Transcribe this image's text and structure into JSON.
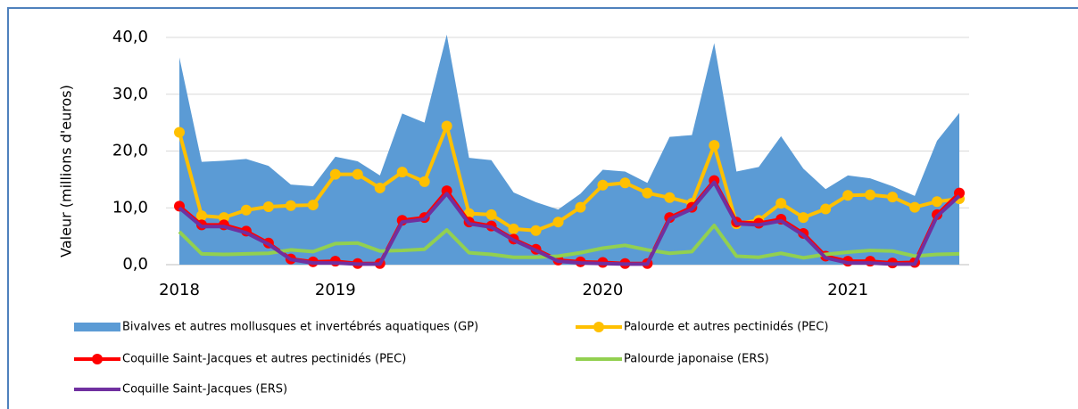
{
  "chart_data": {
    "type": "line",
    "y_label": "Valeur (millions d'euros)",
    "categories": [
      "2018",
      null,
      null,
      null,
      null,
      null,
      null,
      "2019",
      null,
      null,
      null,
      null,
      null,
      null,
      null,
      null,
      null,
      null,
      null,
      "2020",
      null,
      null,
      null,
      null,
      null,
      null,
      null,
      null,
      null,
      null,
      "2021",
      null,
      null,
      null,
      null,
      null
    ],
    "ylim": [
      0,
      40
    ],
    "yticks": [
      {
        "value": 0,
        "label": "0,0"
      },
      {
        "value": 10,
        "label": "10,0"
      },
      {
        "value": 20,
        "label": "20,0"
      },
      {
        "value": 30,
        "label": "30,0"
      },
      {
        "value": 40,
        "label": "40,0"
      }
    ],
    "grid": true,
    "series": [
      {
        "name": "Bivalves et autres mollusques et invertébrés aquatiques (GP)",
        "color": "#5b9bd5",
        "kind": "area",
        "markers": false,
        "values": [
          36.5,
          18.1,
          18.3,
          18.6,
          17.4,
          14.1,
          13.8,
          19.0,
          18.2,
          15.7,
          26.6,
          25.0,
          40.5,
          18.8,
          18.4,
          12.7,
          11.0,
          9.7,
          12.5,
          16.7,
          16.4,
          14.4,
          22.5,
          22.8,
          39.0,
          16.4,
          17.2,
          22.6,
          16.9,
          13.3,
          15.7,
          15.2,
          13.8,
          12.1,
          21.8,
          26.7
        ]
      },
      {
        "name": "Palourde et autres pectinidés (PEC)",
        "color": "#ffc000",
        "kind": "line",
        "markers": true,
        "values": [
          23.3,
          8.6,
          8.3,
          9.6,
          10.2,
          10.4,
          10.5,
          15.9,
          15.9,
          13.5,
          16.3,
          14.6,
          24.4,
          9.0,
          8.8,
          6.3,
          6.0,
          7.5,
          10.1,
          14.0,
          14.4,
          12.6,
          11.8,
          10.8,
          21.0,
          7.2,
          7.8,
          10.8,
          8.3,
          9.8,
          12.2,
          12.3,
          11.9,
          10.1,
          11.1,
          11.6
        ]
      },
      {
        "name": "Coquille Saint-Jacques et autres pectinidés  (PEC)",
        "color": "#ff0000",
        "kind": "line",
        "markers": true,
        "values": [
          10.3,
          7.0,
          7.0,
          5.9,
          3.8,
          1.0,
          0.5,
          0.6,
          0.2,
          0.2,
          7.8,
          8.3,
          13.0,
          7.5,
          6.8,
          4.5,
          2.7,
          0.8,
          0.5,
          0.4,
          0.2,
          0.2,
          8.3,
          10.1,
          14.8,
          7.5,
          7.3,
          8.0,
          5.5,
          1.5,
          0.6,
          0.6,
          0.3,
          0.4,
          8.8,
          12.6
        ]
      },
      {
        "name": "Palourde japonaise (ERS)",
        "color": "#92d050",
        "kind": "line",
        "markers": false,
        "values": [
          5.8,
          1.9,
          1.8,
          1.9,
          2.0,
          2.6,
          2.3,
          3.7,
          3.8,
          2.4,
          2.5,
          2.7,
          6.1,
          2.1,
          1.8,
          1.3,
          1.3,
          1.5,
          2.1,
          2.9,
          3.4,
          2.6,
          2.0,
          2.3,
          6.9,
          1.5,
          1.3,
          2.0,
          1.2,
          1.8,
          2.2,
          2.5,
          2.4,
          1.5,
          1.8,
          1.9
        ]
      },
      {
        "name": "Coquille Saint-Jacques (ERS)",
        "color": "#7030a0",
        "kind": "line",
        "markers": false,
        "values": [
          10.0,
          6.7,
          6.7,
          5.6,
          3.6,
          0.9,
          0.3,
          0.3,
          0.1,
          0.1,
          7.5,
          8.0,
          12.5,
          7.2,
          6.6,
          4.3,
          2.5,
          0.6,
          0.3,
          0.2,
          0.1,
          0.1,
          8.0,
          9.8,
          14.5,
          7.2,
          7.0,
          7.7,
          5.2,
          1.2,
          0.3,
          0.3,
          0.1,
          0.1,
          8.5,
          12.1
        ]
      }
    ]
  }
}
